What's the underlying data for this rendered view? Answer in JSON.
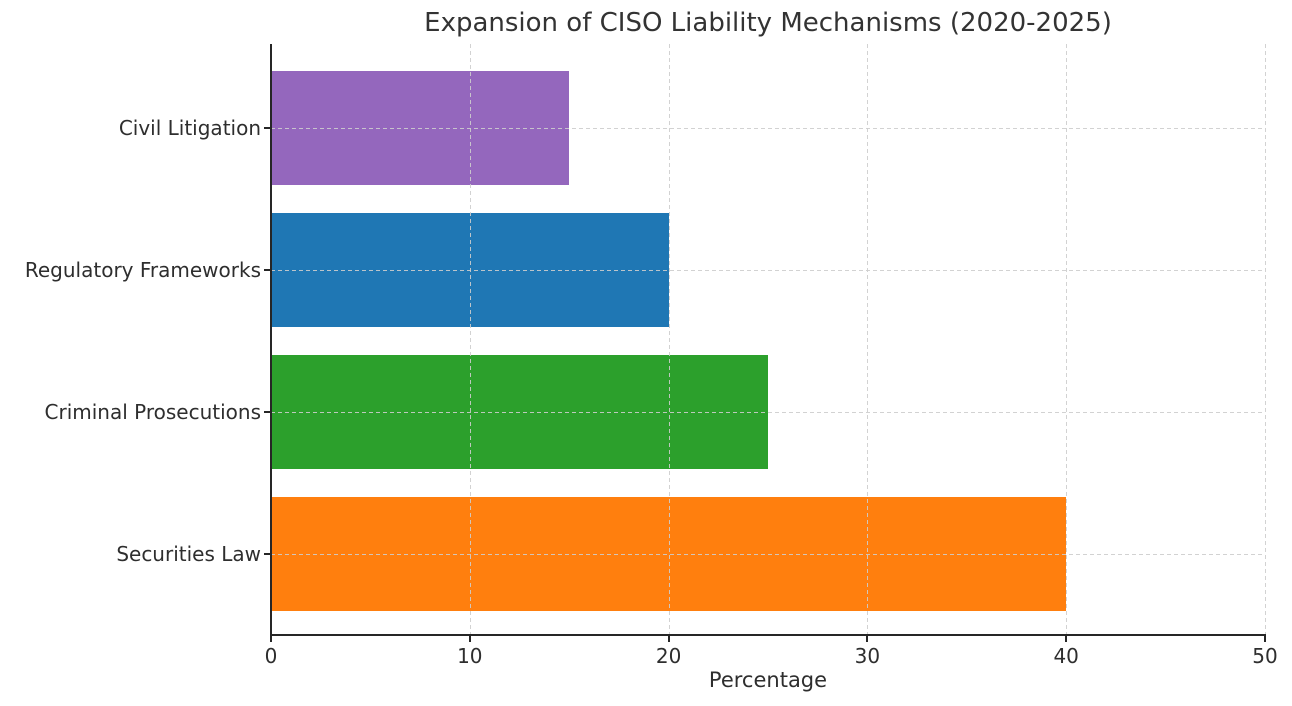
{
  "chart_data": {
    "type": "bar",
    "orientation": "horizontal",
    "title": "Expansion of CISO Liability Mechanisms (2020-2025)",
    "xlabel": "Percentage",
    "ylabel": "",
    "categories": [
      "Civil Litigation",
      "Regulatory Frameworks",
      "Criminal Prosecutions",
      "Securities Law"
    ],
    "values": [
      15,
      20,
      25,
      40
    ],
    "bar_colors": [
      "#9467bd",
      "#1f77b4",
      "#2ca02c",
      "#ff7f0e"
    ],
    "xlim": [
      0,
      50
    ],
    "xticks": [
      0,
      10,
      20,
      30,
      40,
      50
    ],
    "grid": "dashed light-gray, both axes, drawn over bars",
    "legend": "none",
    "background_color": "#ffffff",
    "text_color": "#2e2e2e"
  }
}
